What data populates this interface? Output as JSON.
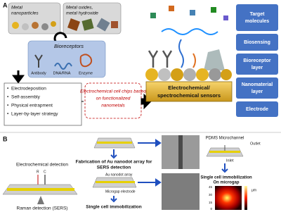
{
  "panel_a": {
    "label": "A",
    "metal_nanoparticles": [
      "Metal",
      "nanoparticles"
    ],
    "metal_oxides": [
      "Metal oxides,",
      "metal hydroxide"
    ],
    "bioreceptors": {
      "title": "Bioreceptors",
      "items": [
        "Antibody",
        "DNA/RNA",
        "Enzyme"
      ]
    },
    "methods": [
      "Electrodeposition",
      "Self-assembly",
      "Physical entrapment",
      "Layer-by-layer strategy"
    ],
    "cell_chips": [
      "Electrochemical cell chips based",
      "on functionalized",
      "nanometals"
    ],
    "sensors": [
      "Electrochemical/",
      "spectrochemical sensors"
    ],
    "layers": [
      [
        "Target",
        "molecules"
      ],
      [
        "Biosensing"
      ],
      [
        "Bioreceptor",
        "layer"
      ],
      [
        "Nanomaterial",
        "layer"
      ],
      [
        "Electrode"
      ]
    ]
  },
  "panel_b": {
    "label": "B",
    "electrochemical_detection": "Electrochemical detection",
    "electrodes": [
      "R",
      "C"
    ],
    "raman_detection": "Raman detection (SERS)",
    "fabrication": [
      "Fabrication of Au nanodot array for",
      "SERS detection"
    ],
    "au_nanodot_array": "Au nanodot array",
    "microgap_electrode": "Microgap electrode",
    "single_cell": "Single cell immobilization",
    "pdms": "PDMS Microchannel",
    "outlet": "Outlet",
    "inlet": "Inlet",
    "single_cell_microgap": [
      "Single cell immobilization",
      "On microgap"
    ],
    "heatmap_ticks": [
      "45",
      "30",
      "15",
      "0"
    ],
    "heatmap_unit": "μm"
  }
}
